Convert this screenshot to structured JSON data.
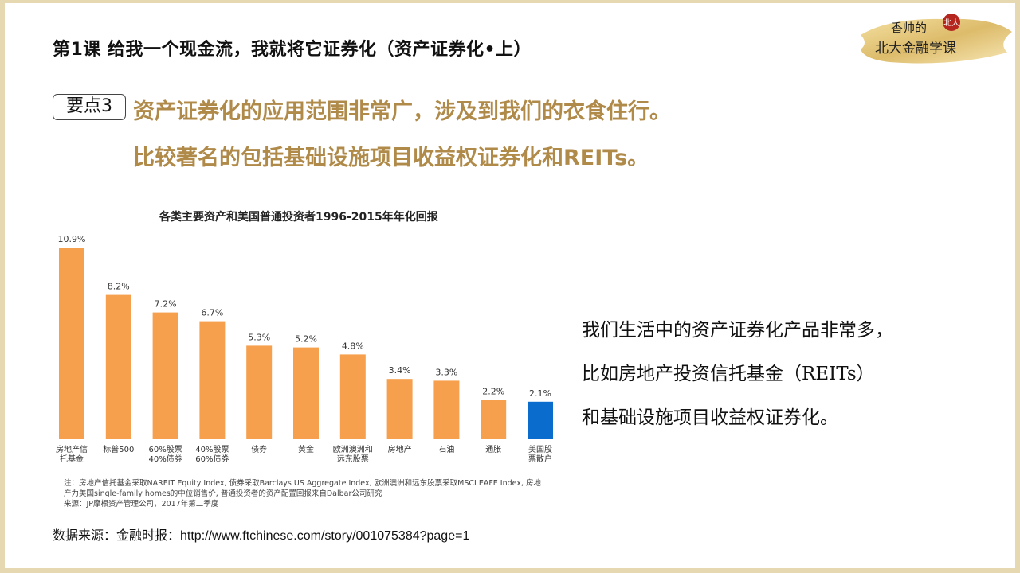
{
  "slide": {
    "title": "第1课  给我一个现金流，我就将它证券化（资产证券化•上）",
    "logo": {
      "line1": "香帅的",
      "line2": "北大金融学课"
    },
    "key_point": {
      "badge": "要点3",
      "line1": "资产证券化的应用范围非常广，涉及到我们的衣食住行。",
      "line2": "比较著名的包括基础设施项目收益权证券化和REITs。"
    },
    "description": [
      "我们生活中的资产证券化产品非常多，",
      "比如房地产投资信托基金（REITs）",
      "和基础设施项目收益权证券化。"
    ],
    "chart_note": [
      "注：房地产信托基金采取NAREIT Equity Index, 债券采取Barclays US Aggregate Index, 欧洲澳洲和远东股票采取MSCI EAFE Index, 房地",
      "产为美国single-family homes的中位销售价, 普通投资者的资产配置回报来自Dalbar公司研究",
      "来源：JP摩根资产管理公司，2017年第二季度"
    ],
    "source": "数据来源：金融时报：http://www.ftchinese.com/story/001075384?page=1"
  },
  "colors": {
    "bar": "#f6a04d",
    "highlight_bar": "#0a6ccd",
    "key_text": "#b08a49",
    "frame": "#e6d8b0"
  },
  "chart_data": {
    "type": "bar",
    "title": "各类主要资产和美国普通投资者1996-2015年年化回报",
    "categories": [
      [
        "房地产信",
        "托基金"
      ],
      [
        "标普500"
      ],
      [
        "60%股票",
        "40%债券"
      ],
      [
        "40%股票",
        "60%债券"
      ],
      [
        "债券"
      ],
      [
        "黄金"
      ],
      [
        "欧洲澳洲和",
        "远东股票"
      ],
      [
        "房地产"
      ],
      [
        "石油"
      ],
      [
        "通胀"
      ],
      [
        "美国股",
        "票散户"
      ]
    ],
    "values": [
      10.9,
      8.2,
      7.2,
      6.7,
      5.3,
      5.2,
      4.8,
      3.4,
      3.3,
      2.2,
      2.1
    ],
    "data_labels": [
      "10.9%",
      "8.2%",
      "7.2%",
      "6.7%",
      "5.3%",
      "5.2%",
      "4.8%",
      "3.4%",
      "3.3%",
      "2.2%",
      "2.1%"
    ],
    "highlight_index": 10,
    "ylim": [
      0,
      11.5
    ],
    "grid": false,
    "legend": "none"
  }
}
